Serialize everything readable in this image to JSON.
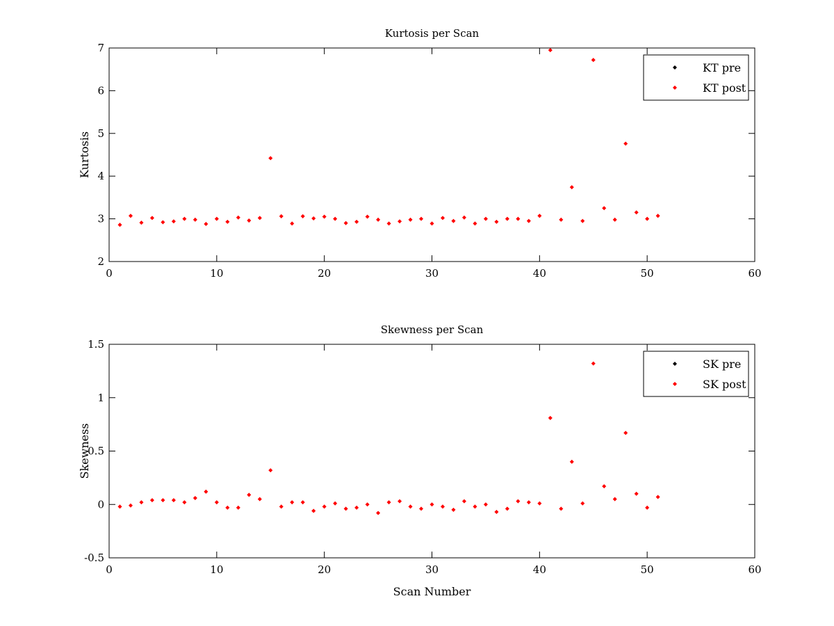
{
  "chart_data": [
    {
      "type": "scatter",
      "title": "Kurtosis per Scan",
      "xlabel": "",
      "ylabel": "Kurtosis",
      "xlim": [
        0,
        60
      ],
      "ylim": [
        2,
        7
      ],
      "xticks": [
        "0",
        "10",
        "20",
        "30",
        "40",
        "50",
        "60"
      ],
      "yticks": [
        "2",
        "3",
        "4",
        "5",
        "6",
        "7"
      ],
      "grid": false,
      "legend_position": "top-right",
      "series": [
        {
          "name": "KT pre",
          "color": "#000000",
          "x": [],
          "y": []
        },
        {
          "name": "KT post",
          "color": "#ff0000",
          "x": [
            1,
            2,
            3,
            4,
            5,
            6,
            7,
            8,
            9,
            10,
            11,
            12,
            13,
            14,
            15,
            16,
            17,
            18,
            19,
            20,
            21,
            22,
            23,
            24,
            25,
            26,
            27,
            28,
            29,
            30,
            31,
            32,
            33,
            34,
            35,
            36,
            37,
            38,
            39,
            40,
            41,
            42,
            43,
            44,
            45,
            46,
            47,
            48,
            49,
            50,
            51
          ],
          "y": [
            2.86,
            3.07,
            2.91,
            3.02,
            2.92,
            2.94,
            3.0,
            2.98,
            2.88,
            3.0,
            2.93,
            3.03,
            2.96,
            3.02,
            4.42,
            3.06,
            2.89,
            3.06,
            3.01,
            3.05,
            3.0,
            2.9,
            2.93,
            3.05,
            2.98,
            2.89,
            2.94,
            2.98,
            3.0,
            2.89,
            3.02,
            2.95,
            3.03,
            2.89,
            3.0,
            2.93,
            3.0,
            3.0,
            2.95,
            3.07,
            6.95,
            2.98,
            3.74,
            2.95,
            6.72,
            3.25,
            2.98,
            4.76,
            3.15,
            3.0,
            3.07
          ]
        }
      ]
    },
    {
      "type": "scatter",
      "title": "Skewness per Scan",
      "xlabel": "Scan Number",
      "ylabel": "Skewness",
      "xlim": [
        0,
        60
      ],
      "ylim": [
        -0.5,
        1.5
      ],
      "xticks": [
        "0",
        "10",
        "20",
        "30",
        "40",
        "50",
        "60"
      ],
      "yticks": [
        "-0.5",
        "0",
        "0.5",
        "1",
        "1.5"
      ],
      "grid": false,
      "legend_position": "top-right",
      "series": [
        {
          "name": "SK pre",
          "color": "#000000",
          "x": [],
          "y": []
        },
        {
          "name": "SK post",
          "color": "#ff0000",
          "x": [
            1,
            2,
            3,
            4,
            5,
            6,
            7,
            8,
            9,
            10,
            11,
            12,
            13,
            14,
            15,
            16,
            17,
            18,
            19,
            20,
            21,
            22,
            23,
            24,
            25,
            26,
            27,
            28,
            29,
            30,
            31,
            32,
            33,
            34,
            35,
            36,
            37,
            38,
            39,
            40,
            41,
            42,
            43,
            44,
            45,
            46,
            47,
            48,
            49,
            50,
            51
          ],
          "y": [
            -0.02,
            -0.01,
            0.02,
            0.04,
            0.04,
            0.04,
            0.02,
            0.06,
            0.12,
            0.02,
            -0.03,
            -0.03,
            0.09,
            0.05,
            0.32,
            -0.02,
            0.02,
            0.02,
            -0.06,
            -0.02,
            0.01,
            -0.04,
            -0.03,
            0.0,
            -0.08,
            0.02,
            0.03,
            -0.02,
            -0.04,
            0.0,
            -0.02,
            -0.05,
            0.03,
            -0.02,
            0.0,
            -0.07,
            -0.04,
            0.03,
            0.02,
            0.01,
            0.81,
            -0.04,
            0.4,
            0.01,
            1.32,
            0.17,
            0.05,
            0.67,
            0.1,
            -0.03,
            0.07
          ]
        }
      ]
    }
  ]
}
